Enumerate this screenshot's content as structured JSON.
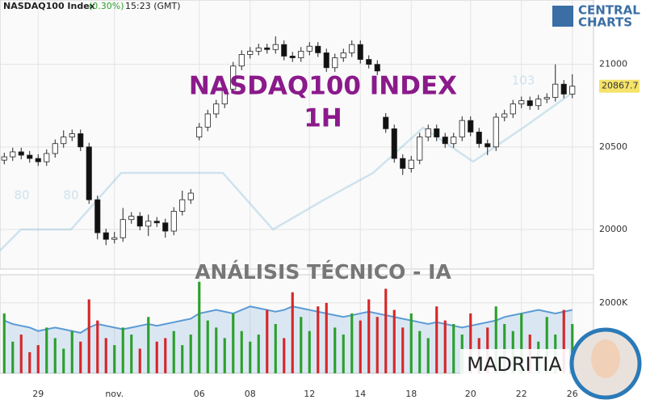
{
  "header": {
    "symbol": "NASDAQ100 Index",
    "change": "(0.30%)",
    "time": "15:23 (GMT)"
  },
  "logo": {
    "line1": "CENTRAL",
    "line2": "CHARTS"
  },
  "watermark": {
    "title": "NASDAQ100 INDEX",
    "timeframe": "1H",
    "subtitle": "ANÁLISIS TÉCNICO - IA",
    "brand": "MADRITIA"
  },
  "annotations": [
    "80",
    "80",
    "103"
  ],
  "chart_data": [
    {
      "type": "candlestick",
      "open": [
        20420,
        20440,
        20470,
        20450,
        20430,
        20410,
        20460,
        20520,
        20560,
        20580,
        20500,
        20180,
        19980,
        19940,
        19950,
        20060,
        20080,
        20020,
        20050,
        20040,
        19990,
        20110,
        20180,
        20560,
        20620,
        20700,
        20760,
        20850,
        20990,
        21060,
        21080,
        21100,
        21090,
        21120,
        21050,
        21040,
        21080,
        21110,
        21070,
        20980,
        21040,
        21070,
        21120,
        21030,
        21000,
        20680,
        20610,
        20430,
        20370,
        20420,
        20560,
        20610,
        20560,
        20520,
        20560,
        20660,
        20590,
        20520,
        20500,
        20680,
        20700,
        20760,
        20780,
        20750,
        20790,
        20800,
        20880,
        20820
      ],
      "high": [
        20465,
        20495,
        20495,
        20475,
        20455,
        20485,
        20545,
        20600,
        20605,
        20605,
        20525,
        20205,
        20005,
        19985,
        20130,
        20105,
        20105,
        20090,
        20075,
        20065,
        20135,
        20235,
        20245,
        20645,
        20725,
        20785,
        20875,
        21015,
        21085,
        21105,
        21125,
        21125,
        21170,
        21145,
        21075,
        21105,
        21135,
        21135,
        21095,
        21065,
        21095,
        21145,
        21145,
        21055,
        21025,
        20705,
        20635,
        20455,
        20445,
        20585,
        20635,
        20635,
        20585,
        20585,
        20685,
        20685,
        20615,
        20545,
        20705,
        20725,
        20785,
        20805,
        20805,
        20815,
        20825,
        21000,
        20905,
        20940
      ],
      "low": [
        20395,
        20415,
        20425,
        20405,
        20385,
        20385,
        20435,
        20495,
        20535,
        20475,
        20155,
        19940,
        19905,
        19915,
        19925,
        20035,
        19995,
        19960,
        20015,
        19950,
        19965,
        20085,
        20155,
        20540,
        20595,
        20675,
        20735,
        20825,
        20965,
        21035,
        21055,
        21065,
        21065,
        21025,
        21015,
        21015,
        21055,
        21045,
        20955,
        20955,
        21015,
        21045,
        21005,
        20975,
        20935,
        20585,
        20405,
        20330,
        20345,
        20395,
        20535,
        20535,
        20495,
        20495,
        20535,
        20565,
        20495,
        20450,
        20475,
        20655,
        20675,
        20735,
        20725,
        20725,
        20765,
        20775,
        20795,
        20795
      ],
      "close": [
        20440,
        20470,
        20450,
        20430,
        20410,
        20460,
        20520,
        20560,
        20580,
        20500,
        20180,
        19980,
        19940,
        19950,
        20060,
        20080,
        20020,
        20050,
        20040,
        19990,
        20110,
        20180,
        20220,
        20620,
        20700,
        20760,
        20850,
        20990,
        21060,
        21080,
        21100,
        21090,
        21120,
        21050,
        21040,
        21080,
        21110,
        21070,
        20980,
        21040,
        21070,
        21120,
        21030,
        21000,
        20960,
        20610,
        20430,
        20370,
        20420,
        20560,
        20610,
        20560,
        20520,
        20560,
        20660,
        20590,
        20520,
        20500,
        20680,
        20700,
        20760,
        20780,
        20750,
        20790,
        20800,
        20880,
        20820,
        20867.7
      ],
      "up_color": "#ffffff",
      "down_color": "#111111",
      "xlim": [
        -0.5,
        69.5
      ],
      "ylim": [
        19760,
        21390
      ],
      "yticks": [
        20000,
        20500,
        21000
      ],
      "xticks": [
        {
          "value": 4,
          "label": "29"
        },
        {
          "value": 13,
          "label": "nov."
        },
        {
          "value": 23,
          "label": "06"
        },
        {
          "value": 29,
          "label": "08"
        },
        {
          "value": 36,
          "label": "12"
        },
        {
          "value": 42,
          "label": "14"
        },
        {
          "value": 48,
          "label": "18"
        },
        {
          "value": 55,
          "label": "20"
        },
        {
          "value": 61,
          "label": "22"
        },
        {
          "value": 67,
          "label": "26"
        }
      ],
      "grid": true
    },
    {
      "type": "volume",
      "values": [
        1700000,
        900000,
        1100000,
        600000,
        800000,
        1300000,
        1000000,
        700000,
        1200000,
        900000,
        2100000,
        1500000,
        1000000,
        800000,
        1300000,
        1100000,
        700000,
        1600000,
        900000,
        1000000,
        1200000,
        800000,
        1100000,
        2600000,
        1500000,
        1300000,
        1000000,
        1700000,
        1200000,
        900000,
        1100000,
        1800000,
        1400000,
        1000000,
        2300000,
        1600000,
        1200000,
        1900000,
        2000000,
        1300000,
        1100000,
        1700000,
        1500000,
        2100000,
        1600000,
        2400000,
        1800000,
        1300000,
        1700000,
        1200000,
        1000000,
        1900000,
        1500000,
        1400000,
        1100000,
        1700000,
        1000000,
        1300000,
        1900000,
        1400000,
        1200000,
        1700000,
        1100000,
        900000,
        1600000,
        1100000,
        1800000,
        1400000
      ],
      "ma_values": [
        1500000,
        1400000,
        1350000,
        1300000,
        1200000,
        1250000,
        1300000,
        1250000,
        1200000,
        1150000,
        1300000,
        1400000,
        1350000,
        1300000,
        1250000,
        1300000,
        1350000,
        1400000,
        1350000,
        1400000,
        1450000,
        1500000,
        1550000,
        1700000,
        1750000,
        1800000,
        1750000,
        1700000,
        1800000,
        1900000,
        1850000,
        1800000,
        1750000,
        1800000,
        1900000,
        1850000,
        1800000,
        1750000,
        1700000,
        1650000,
        1600000,
        1650000,
        1700000,
        1750000,
        1700000,
        1650000,
        1600000,
        1550000,
        1500000,
        1450000,
        1400000,
        1450000,
        1400000,
        1350000,
        1300000,
        1350000,
        1400000,
        1450000,
        1500000,
        1600000,
        1650000,
        1700000,
        1750000,
        1800000,
        1750000,
        1700000,
        1750000,
        1800000
      ],
      "up_color": "#2ca02c",
      "down_color": "#d62728",
      "ma_color": "#5b9bd5",
      "xlim": [
        -0.5,
        69.5
      ],
      "ylim": [
        0,
        2800000
      ],
      "yticks": [
        {
          "value": 2000000,
          "label": "2000K"
        }
      ]
    }
  ]
}
